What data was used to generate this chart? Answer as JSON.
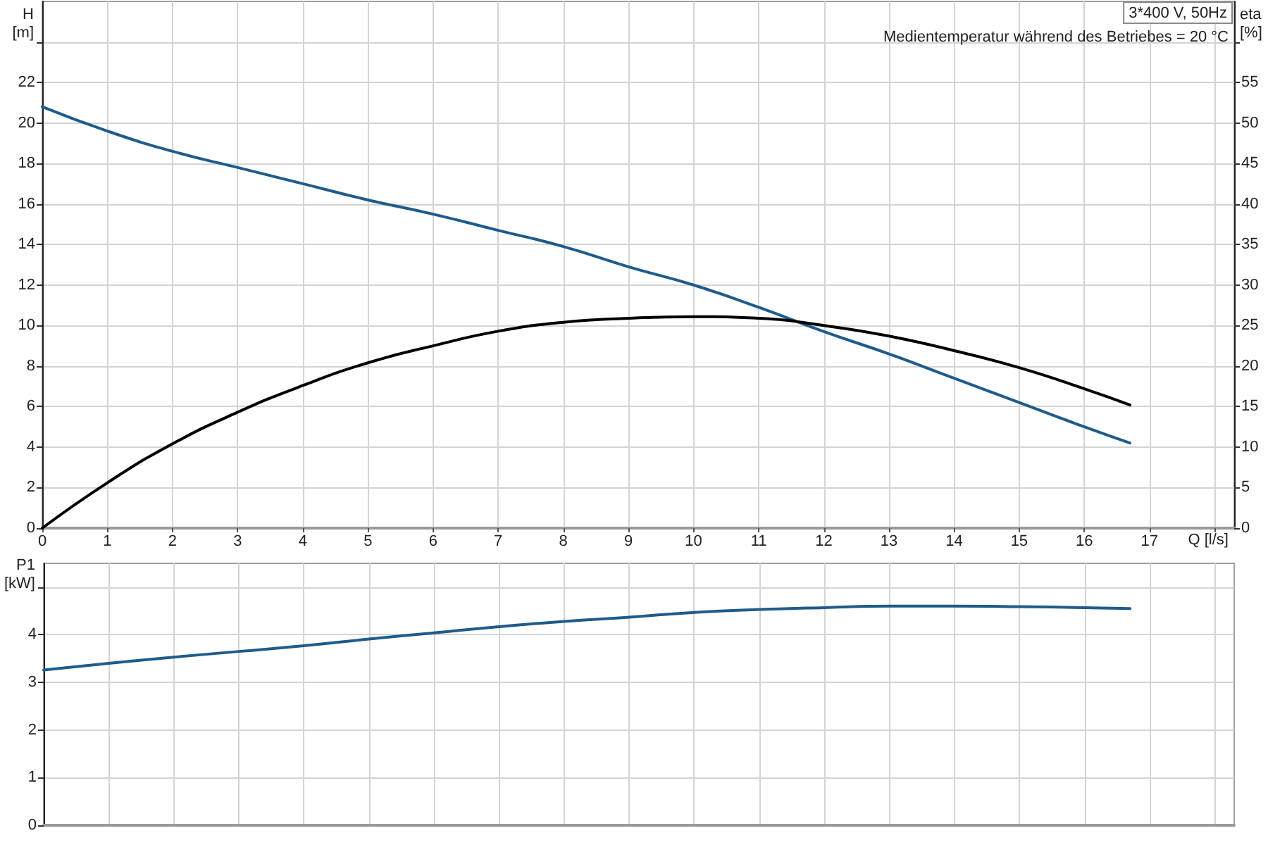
{
  "chart_data": [
    {
      "type": "line",
      "xlabel": "Q [l/s]",
      "ylabel": "H\n[m]",
      "y2label": "eta\n[%]",
      "annotations": [
        "3*400 V, 50Hz",
        "Medientemperatur während des Betriebes = 20 °C"
      ],
      "x": [
        0,
        1,
        2,
        3,
        4,
        5,
        6,
        7,
        8,
        9,
        10,
        11,
        12,
        13,
        14,
        15,
        16,
        16.7
      ],
      "series": [
        {
          "color": "#1f5b8c",
          "values": [
            20.8,
            19.6,
            18.6,
            17.8,
            17.0,
            16.2,
            15.5,
            14.7,
            13.9,
            12.9,
            12.0,
            10.9,
            9.7,
            8.6,
            7.4,
            6.2,
            5.0,
            4.2
          ]
        },
        {
          "color": "#000000",
          "axis": "y2",
          "values": [
            0,
            5.6,
            10.4,
            14.3,
            17.6,
            20.4,
            22.5,
            24.3,
            25.4,
            25.9,
            26.1,
            25.9,
            25.0,
            23.7,
            21.9,
            19.8,
            17.2,
            15.2
          ]
        }
      ],
      "xlim": [
        0,
        18.3
      ],
      "xticks": [
        0,
        1,
        2,
        3,
        4,
        5,
        6,
        7,
        8,
        9,
        10,
        11,
        12,
        13,
        14,
        15,
        16,
        17,
        {
          "value": 18,
          "label": null
        }
      ],
      "ylim": [
        0,
        26
      ],
      "yticks": [
        0,
        2,
        4,
        6,
        8,
        10,
        12,
        14,
        16,
        18,
        20,
        22,
        {
          "value": 24,
          "label": null
        }
      ],
      "y2lim": [
        0,
        65
      ],
      "y2ticks": [
        0,
        5,
        10,
        15,
        20,
        25,
        30,
        35,
        40,
        45,
        50,
        55,
        {
          "value": 60,
          "label": null
        }
      ],
      "grid": true,
      "marker": "none",
      "line_style": "solid"
    },
    {
      "type": "line",
      "ylabel": "P1\n[kW]",
      "x": [
        0,
        1,
        2,
        3,
        4,
        5,
        6,
        7,
        8,
        9,
        10,
        11,
        12,
        13,
        14,
        15,
        16,
        16.7
      ],
      "values": [
        3.26,
        3.4,
        3.53,
        3.65,
        3.77,
        3.91,
        4.04,
        4.17,
        4.28,
        4.37,
        4.47,
        4.53,
        4.57,
        4.6,
        4.6,
        4.59,
        4.57,
        4.55
      ],
      "color": "#1f5b8c",
      "xlim": [
        0,
        18.3
      ],
      "xticks": [
        0,
        1,
        2,
        3,
        4,
        5,
        6,
        7,
        8,
        9,
        10,
        11,
        12,
        13,
        14,
        15,
        16,
        17,
        {
          "value": 18,
          "label": null
        }
      ],
      "ylim": [
        0,
        5.5
      ],
      "yticks": [
        0,
        1,
        2,
        3,
        4,
        {
          "value": 5,
          "label": null
        }
      ],
      "tick_labels": "y",
      "grid": true,
      "marker": "none",
      "line_style": "solid"
    }
  ]
}
